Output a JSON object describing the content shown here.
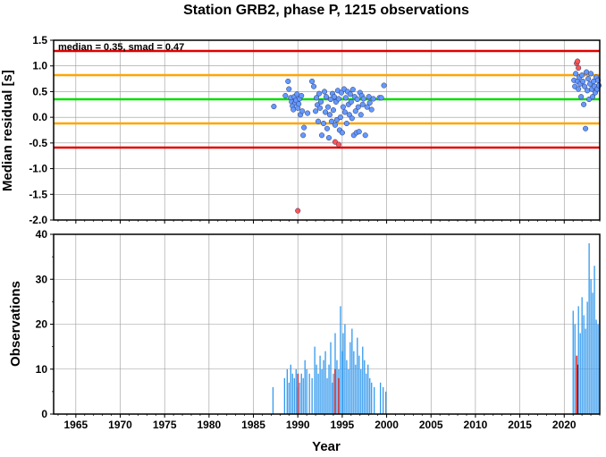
{
  "figure": {
    "title": "Station GRB2, phase P, 1215 observations"
  },
  "chart_data": [
    {
      "type": "scatter",
      "ylabel": "Median residual [s]",
      "annotation": "median = 0.35, smad = 0.47",
      "xlim": [
        1962.5,
        2024
      ],
      "ylim": [
        -2.0,
        1.5
      ],
      "yticks": [
        "1.5",
        "1.0",
        "0.5",
        "0.0",
        "-0.5",
        "-1.0",
        "-1.5",
        "-2.0"
      ],
      "xticks": [
        "1965",
        "1970",
        "1975",
        "1980",
        "1985",
        "1990",
        "1995",
        "2000",
        "2005",
        "2010",
        "2015",
        "2020"
      ],
      "grid": true,
      "reference_lines": [
        {
          "name": "median",
          "value": 0.35,
          "color": "#00dd00"
        },
        {
          "name": "median-1smad",
          "value": -0.12,
          "color": "#ffa500"
        },
        {
          "name": "median+1smad",
          "value": 0.82,
          "color": "#ffa500"
        },
        {
          "name": "median-2smad",
          "value": -0.59,
          "color": "#e00000"
        },
        {
          "name": "median+2smad",
          "value": 1.29,
          "color": "#e00000"
        }
      ],
      "colors": {
        "normal_point": "#6699ff",
        "outlier_point": "#ff5555"
      },
      "series": [
        {
          "points": [
            [
              1987.3,
              0.21
            ],
            [
              1988.6,
              0.42
            ],
            [
              1988.9,
              0.7
            ],
            [
              1989.0,
              0.55
            ],
            [
              1989.2,
              0.38
            ],
            [
              1989.3,
              0.3
            ],
            [
              1989.4,
              0.22
            ],
            [
              1989.5,
              0.15
            ],
            [
              1989.6,
              0.4
            ],
            [
              1989.7,
              0.28
            ],
            [
              1989.8,
              0.33
            ],
            [
              1989.9,
              0.45
            ],
            [
              1990.0,
              0.18
            ],
            [
              1990.1,
              0.26
            ],
            [
              1990.2,
              0.36
            ],
            [
              1990.3,
              0.05
            ],
            [
              1990.4,
              0.42
            ],
            [
              1990.5,
              0.12
            ],
            [
              1990.6,
              -0.35
            ],
            [
              1990.7,
              -0.2
            ],
            [
              1991.1,
              0.08
            ],
            [
              1991.6,
              0.7
            ],
            [
              1991.8,
              0.6
            ],
            [
              1992.0,
              0.12
            ],
            [
              1992.1,
              0.38
            ],
            [
              1992.2,
              0.24
            ],
            [
              1992.3,
              -0.08
            ],
            [
              1992.4,
              0.46
            ],
            [
              1992.5,
              0.18
            ],
            [
              1992.6,
              0.3
            ],
            [
              1992.7,
              -0.35
            ],
            [
              1992.9,
              -0.12
            ],
            [
              1993.0,
              0.5
            ],
            [
              1993.1,
              0.1
            ],
            [
              1993.2,
              0.4
            ],
            [
              1993.3,
              -0.22
            ],
            [
              1993.4,
              0.2
            ],
            [
              1993.5,
              -0.4
            ],
            [
              1993.6,
              0.05
            ],
            [
              1993.7,
              0.35
            ],
            [
              1993.8,
              -0.08
            ],
            [
              1993.9,
              0.46
            ],
            [
              1994.0,
              0.14
            ],
            [
              1994.1,
              0.4
            ],
            [
              1994.2,
              -0.15
            ],
            [
              1994.3,
              0.3
            ],
            [
              1994.4,
              -0.05
            ],
            [
              1994.5,
              0.52
            ],
            [
              1994.6,
              0.36
            ],
            [
              1994.7,
              -0.25
            ],
            [
              1994.8,
              0.0
            ],
            [
              1994.9,
              0.48
            ],
            [
              1995.0,
              -0.3
            ],
            [
              1995.1,
              0.2
            ],
            [
              1995.2,
              0.55
            ],
            [
              1995.3,
              0.1
            ],
            [
              1995.4,
              0.38
            ],
            [
              1995.5,
              -0.12
            ],
            [
              1995.6,
              0.5
            ],
            [
              1995.7,
              0.25
            ],
            [
              1995.8,
              0.05
            ],
            [
              1995.9,
              0.45
            ],
            [
              1996.0,
              0.3
            ],
            [
              1996.1,
              -0.02
            ],
            [
              1996.2,
              0.54
            ],
            [
              1996.3,
              -0.35
            ],
            [
              1996.4,
              0.4
            ],
            [
              1996.5,
              0.12
            ],
            [
              1996.6,
              -0.3
            ],
            [
              1996.7,
              0.35
            ],
            [
              1996.8,
              0.2
            ],
            [
              1996.9,
              -0.28
            ],
            [
              1997.0,
              0.48
            ],
            [
              1997.1,
              0.05
            ],
            [
              1997.2,
              0.42
            ],
            [
              1997.3,
              0.25
            ],
            [
              1997.4,
              0.36
            ],
            [
              1997.6,
              -0.35
            ],
            [
              1997.8,
              0.2
            ],
            [
              1998.0,
              0.4
            ],
            [
              1998.1,
              0.28
            ],
            [
              1998.3,
              0.15
            ],
            [
              1998.5,
              0.36
            ],
            [
              1999.2,
              0.38
            ],
            [
              1999.4,
              0.38
            ],
            [
              1999.7,
              0.62
            ],
            [
              2021.1,
              0.72
            ],
            [
              2021.2,
              0.6
            ],
            [
              2021.3,
              0.85
            ],
            [
              2021.5,
              0.7
            ],
            [
              2021.6,
              0.55
            ],
            [
              2021.7,
              0.78
            ],
            [
              2021.8,
              0.65
            ],
            [
              2021.9,
              0.4
            ],
            [
              2022.0,
              0.82
            ],
            [
              2022.1,
              0.7
            ],
            [
              2022.2,
              0.25
            ],
            [
              2022.3,
              0.6
            ],
            [
              2022.4,
              -0.22
            ],
            [
              2022.5,
              0.88
            ],
            [
              2022.6,
              0.52
            ],
            [
              2022.7,
              0.75
            ],
            [
              2022.8,
              0.35
            ],
            [
              2022.9,
              0.65
            ],
            [
              2023.0,
              0.85
            ],
            [
              2023.1,
              0.55
            ],
            [
              2023.2,
              0.4
            ],
            [
              2023.3,
              0.7
            ],
            [
              2023.4,
              0.6
            ],
            [
              2023.5,
              0.48
            ],
            [
              2023.6,
              0.78
            ],
            [
              2023.7,
              0.55
            ],
            [
              2023.8,
              0.72
            ],
            [
              2023.9,
              0.62
            ]
          ]
        },
        {
          "outlier": true,
          "points": [
            [
              1990.0,
              -1.82
            ],
            [
              1994.2,
              -0.48
            ],
            [
              1994.6,
              -0.53
            ],
            [
              2021.4,
              1.05
            ],
            [
              2021.5,
              1.09
            ],
            [
              2021.6,
              0.96
            ]
          ]
        }
      ]
    },
    {
      "type": "bar",
      "xlabel": "Year",
      "ylabel": "Observations",
      "xlim": [
        1962.5,
        2024
      ],
      "ylim": [
        0,
        40
      ],
      "yticks": [
        "40",
        "30",
        "20",
        "10",
        "0"
      ],
      "xticks": [
        "1965",
        "1970",
        "1975",
        "1980",
        "1985",
        "1990",
        "1995",
        "2000",
        "2005",
        "2010",
        "2015",
        "2020"
      ],
      "grid": true,
      "colors": {
        "bar": "#3399ee",
        "highlight_bar": "#cc0000"
      },
      "series": [
        {
          "x": [
            1987.2,
            1988.5,
            1988.8,
            1989.0,
            1989.2,
            1989.4,
            1989.6,
            1989.8,
            1990.0,
            1990.2,
            1990.4,
            1990.6,
            1990.8,
            1991.0,
            1991.3,
            1991.6,
            1991.9,
            1992.1,
            1992.3,
            1992.5,
            1992.7,
            1992.9,
            1993.1,
            1993.3,
            1993.5,
            1993.7,
            1993.9,
            1994.0,
            1994.2,
            1994.4,
            1994.6,
            1994.8,
            1995.0,
            1995.1,
            1995.3,
            1995.5,
            1995.7,
            1995.9,
            1996.1,
            1996.3,
            1996.5,
            1996.7,
            1996.9,
            1997.1,
            1997.3,
            1997.5,
            1997.7,
            1997.9,
            1998.1,
            1998.3,
            1998.6,
            1999.3,
            1999.6,
            1999.9,
            2021.0,
            2021.2,
            2021.6,
            2021.8,
            2022.0,
            2022.2,
            2022.4,
            2022.6,
            2022.8,
            2023.0,
            2023.2,
            2023.4,
            2023.6,
            2023.8
          ],
          "values": [
            6,
            8,
            10,
            7,
            11,
            9,
            8,
            10,
            6,
            7,
            9,
            8,
            12,
            10,
            9,
            8,
            15,
            11,
            9,
            13,
            10,
            12,
            14,
            8,
            11,
            16,
            7,
            9,
            18,
            12,
            10,
            24,
            14,
            18,
            20,
            12,
            10,
            16,
            19,
            14,
            11,
            17,
            13,
            10,
            15,
            12,
            9,
            11,
            8,
            7,
            6,
            7,
            6,
            5,
            23,
            20,
            24,
            18,
            26,
            22,
            19,
            25,
            38,
            30,
            27,
            33,
            21,
            20
          ]
        },
        {
          "highlight": true,
          "x": [
            1990.0,
            1994.2,
            1994.6,
            2021.4,
            2021.5
          ],
          "values": [
            9,
            10,
            8,
            13,
            11
          ]
        }
      ]
    }
  ]
}
